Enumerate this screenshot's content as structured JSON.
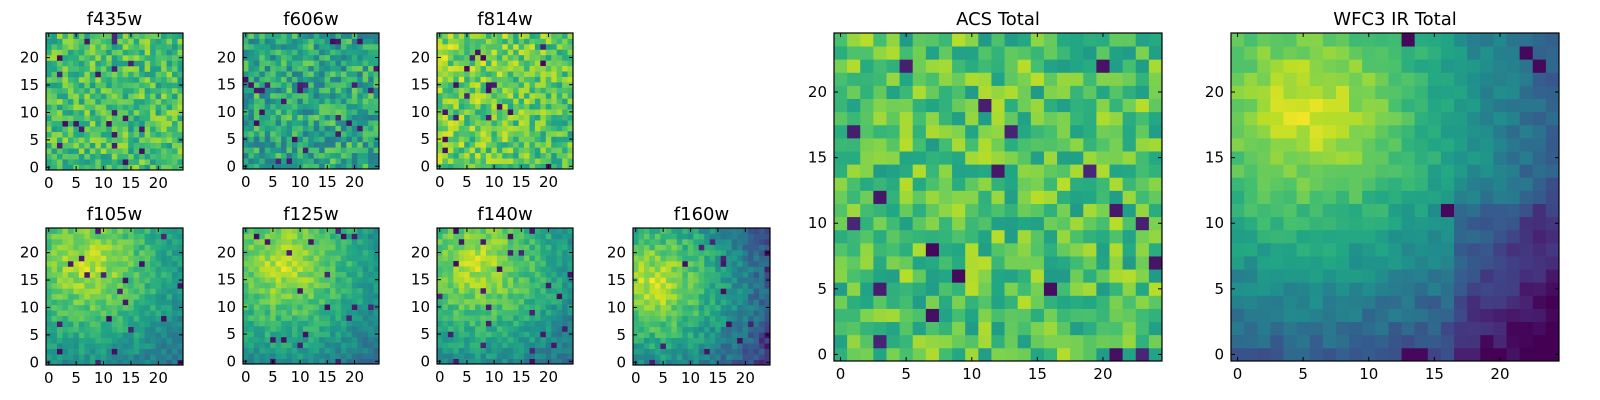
{
  "figure": {
    "colormap": "viridis"
  },
  "chart_data": [
    {
      "type": "heatmap",
      "title": "f435w",
      "xlim": [
        0,
        24
      ],
      "ylim": [
        0,
        24
      ],
      "xticks": [
        0,
        5,
        10,
        15,
        20
      ],
      "yticks": [
        0,
        5,
        10,
        15,
        20
      ],
      "grid": false,
      "description_of_values": "noisy mostly green-yellow pixels with scattered dark pixels"
    },
    {
      "type": "heatmap",
      "title": "f606w",
      "xlim": [
        0,
        24
      ],
      "ylim": [
        0,
        24
      ],
      "xticks": [
        0,
        5,
        10,
        15,
        20
      ],
      "yticks": [
        0,
        5,
        10,
        15,
        20
      ],
      "grid": false,
      "description_of_values": "noisy green pixels with scattered dark pixels"
    },
    {
      "type": "heatmap",
      "title": "f814w",
      "xlim": [
        0,
        24
      ],
      "ylim": [
        0,
        24
      ],
      "xticks": [
        0,
        5,
        10,
        15,
        20
      ],
      "yticks": [
        0,
        5,
        10,
        15,
        20
      ],
      "grid": false,
      "description_of_values": "noisy yellow-green pixels, brighter toward upper left"
    },
    {
      "type": "heatmap",
      "title": "f105w",
      "xlim": [
        0,
        24
      ],
      "ylim": [
        0,
        24
      ],
      "xticks": [
        0,
        5,
        10,
        15,
        20
      ],
      "yticks": [
        0,
        5,
        10,
        15,
        20
      ],
      "grid": false,
      "description_of_values": "bright region upper left, darker teal lower right"
    },
    {
      "type": "heatmap",
      "title": "f125w",
      "xlim": [
        0,
        24
      ],
      "ylim": [
        0,
        24
      ],
      "xticks": [
        0,
        5,
        10,
        15,
        20
      ],
      "yticks": [
        0,
        5,
        10,
        15,
        20
      ],
      "grid": false,
      "description_of_values": "bright region upper left, darker teal lower right"
    },
    {
      "type": "heatmap",
      "title": "f140w",
      "xlim": [
        0,
        24
      ],
      "ylim": [
        0,
        24
      ],
      "xticks": [
        0,
        5,
        10,
        15,
        20
      ],
      "yticks": [
        0,
        5,
        10,
        15,
        20
      ],
      "grid": false,
      "description_of_values": "bright region upper left, darker teal lower right"
    },
    {
      "type": "heatmap",
      "title": "f160w",
      "xlim": [
        0,
        24
      ],
      "ylim": [
        0,
        24
      ],
      "xticks": [
        0,
        5,
        10,
        15,
        20
      ],
      "yticks": [
        0,
        5,
        10,
        15,
        20
      ],
      "grid": false,
      "description_of_values": "bright yellow left side, dark blue lower right"
    },
    {
      "type": "heatmap",
      "title": "ACS Total",
      "xlim": [
        0,
        24
      ],
      "ylim": [
        0,
        24
      ],
      "xticks": [
        0,
        5,
        10,
        15,
        20
      ],
      "yticks": [
        0,
        5,
        10,
        15,
        20
      ],
      "grid": false,
      "description_of_values": "noisy yellow-green field with scattered dark pixels"
    },
    {
      "type": "heatmap",
      "title": "WFC3 IR Total",
      "xlim": [
        0,
        24
      ],
      "ylim": [
        0,
        24
      ],
      "xticks": [
        0,
        5,
        10,
        15,
        20
      ],
      "yticks": [
        0,
        5,
        10,
        15,
        20
      ],
      "grid": false,
      "description_of_values": "bright yellow upper left and left edge, dark blue lower right"
    }
  ]
}
